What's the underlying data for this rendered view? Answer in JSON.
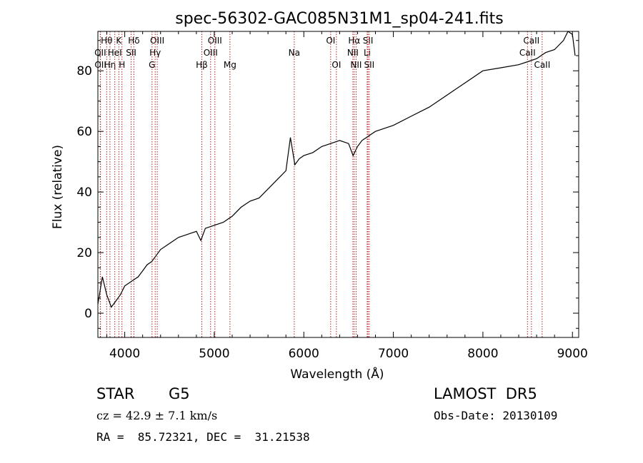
{
  "chart_data": {
    "type": "line",
    "title": "spec-56302-GAC085N31M1_sp04-241.fits",
    "xlabel": "Wavelength (Å)",
    "ylabel": "Flux (relative)",
    "xlim": [
      3700,
      9070
    ],
    "ylim": [
      -8,
      93
    ],
    "xticks": [
      4000,
      5000,
      6000,
      7000,
      8000,
      9000
    ],
    "yticks": [
      0,
      20,
      40,
      60,
      80
    ],
    "grid": false,
    "series": [
      {
        "x": [
          3700,
          3750,
          3800,
          3850,
          3900,
          3950,
          4000,
          4050,
          4100,
          4150,
          4200,
          4250,
          4300,
          4350,
          4400,
          4500,
          4600,
          4700,
          4800,
          4850,
          4900,
          5000,
          5100,
          5200,
          5300,
          5400,
          5500,
          5600,
          5700,
          5800,
          5850,
          5900,
          5950,
          6000,
          6100,
          6200,
          6300,
          6400,
          6500,
          6550,
          6600,
          6650,
          6700,
          6750,
          6800,
          6900,
          7000,
          7200,
          7400,
          7600,
          7800,
          8000,
          8200,
          8400,
          8500,
          8600,
          8700,
          8800,
          8900,
          8950,
          9000,
          9030
        ],
        "y": [
          3,
          12,
          6,
          2,
          4,
          6,
          9,
          10,
          11,
          12,
          14,
          16,
          17,
          19,
          21,
          23,
          25,
          26,
          27,
          24,
          28,
          29,
          30,
          32,
          35,
          37,
          38,
          41,
          44,
          47,
          58,
          49,
          51,
          52,
          53,
          55,
          56,
          57,
          56,
          52,
          55,
          57,
          58,
          59,
          60,
          61,
          62,
          65,
          68,
          72,
          76,
          80,
          81,
          82,
          83,
          84,
          86,
          87,
          90,
          93,
          92,
          85
        ],
        "color": "#000000"
      }
    ],
    "line_marks": [
      {
        "label": "Hθ",
        "row": 1,
        "wavelength": 3798
      },
      {
        "label": "OII",
        "row": 2,
        "wavelength": 3727
      },
      {
        "label": "OII",
        "row": 3,
        "wavelength": 3729
      },
      {
        "label": "Hη",
        "row": 3,
        "wavelength": 3835
      },
      {
        "label": "K",
        "row": 1,
        "wavelength": 3934
      },
      {
        "label": "HeI",
        "row": 2,
        "wavelength": 3889
      },
      {
        "label": "H",
        "row": 3,
        "wavelength": 3969
      },
      {
        "label": "Hδ",
        "row": 1,
        "wavelength": 4102
      },
      {
        "label": "SII",
        "row": 2,
        "wavelength": 4072
      },
      {
        "label": "OIII",
        "row": 1,
        "wavelength": 4363
      },
      {
        "label": "Hγ",
        "row": 2,
        "wavelength": 4340
      },
      {
        "label": "G",
        "row": 3,
        "wavelength": 4305
      },
      {
        "label": "Hβ",
        "row": 3,
        "wavelength": 4861
      },
      {
        "label": "OIII",
        "row": 1,
        "wavelength": 5007
      },
      {
        "label": "OIII",
        "row": 2,
        "wavelength": 4959
      },
      {
        "label": "Mg",
        "row": 3,
        "wavelength": 5175
      },
      {
        "label": "Na",
        "row": 2,
        "wavelength": 5893
      },
      {
        "label": "OI",
        "row": 1,
        "wavelength": 6300
      },
      {
        "label": "OI",
        "row": 3,
        "wavelength": 6364
      },
      {
        "label": "Hα",
        "row": 1,
        "wavelength": 6563
      },
      {
        "label": "NII",
        "row": 2,
        "wavelength": 6548
      },
      {
        "label": "NII",
        "row": 3,
        "wavelength": 6584
      },
      {
        "label": "SII",
        "row": 1,
        "wavelength": 6717
      },
      {
        "label": "Li",
        "row": 2,
        "wavelength": 6708
      },
      {
        "label": "SII",
        "row": 3,
        "wavelength": 6731
      },
      {
        "label": "CaII",
        "row": 1,
        "wavelength": 8542
      },
      {
        "label": "CaII",
        "row": 2,
        "wavelength": 8498
      },
      {
        "label": "CaII",
        "row": 3,
        "wavelength": 8662
      }
    ],
    "line_color": "#b22222"
  },
  "info": {
    "class_label": "STAR",
    "subclass": "G5",
    "survey": "LAMOST  DR5",
    "cz": "cz = 42.9 ± 7.1 km/s",
    "obs_date": "Obs-Date: 20130109",
    "coords": "RA =  85.72321, DEC =  31.21538"
  }
}
